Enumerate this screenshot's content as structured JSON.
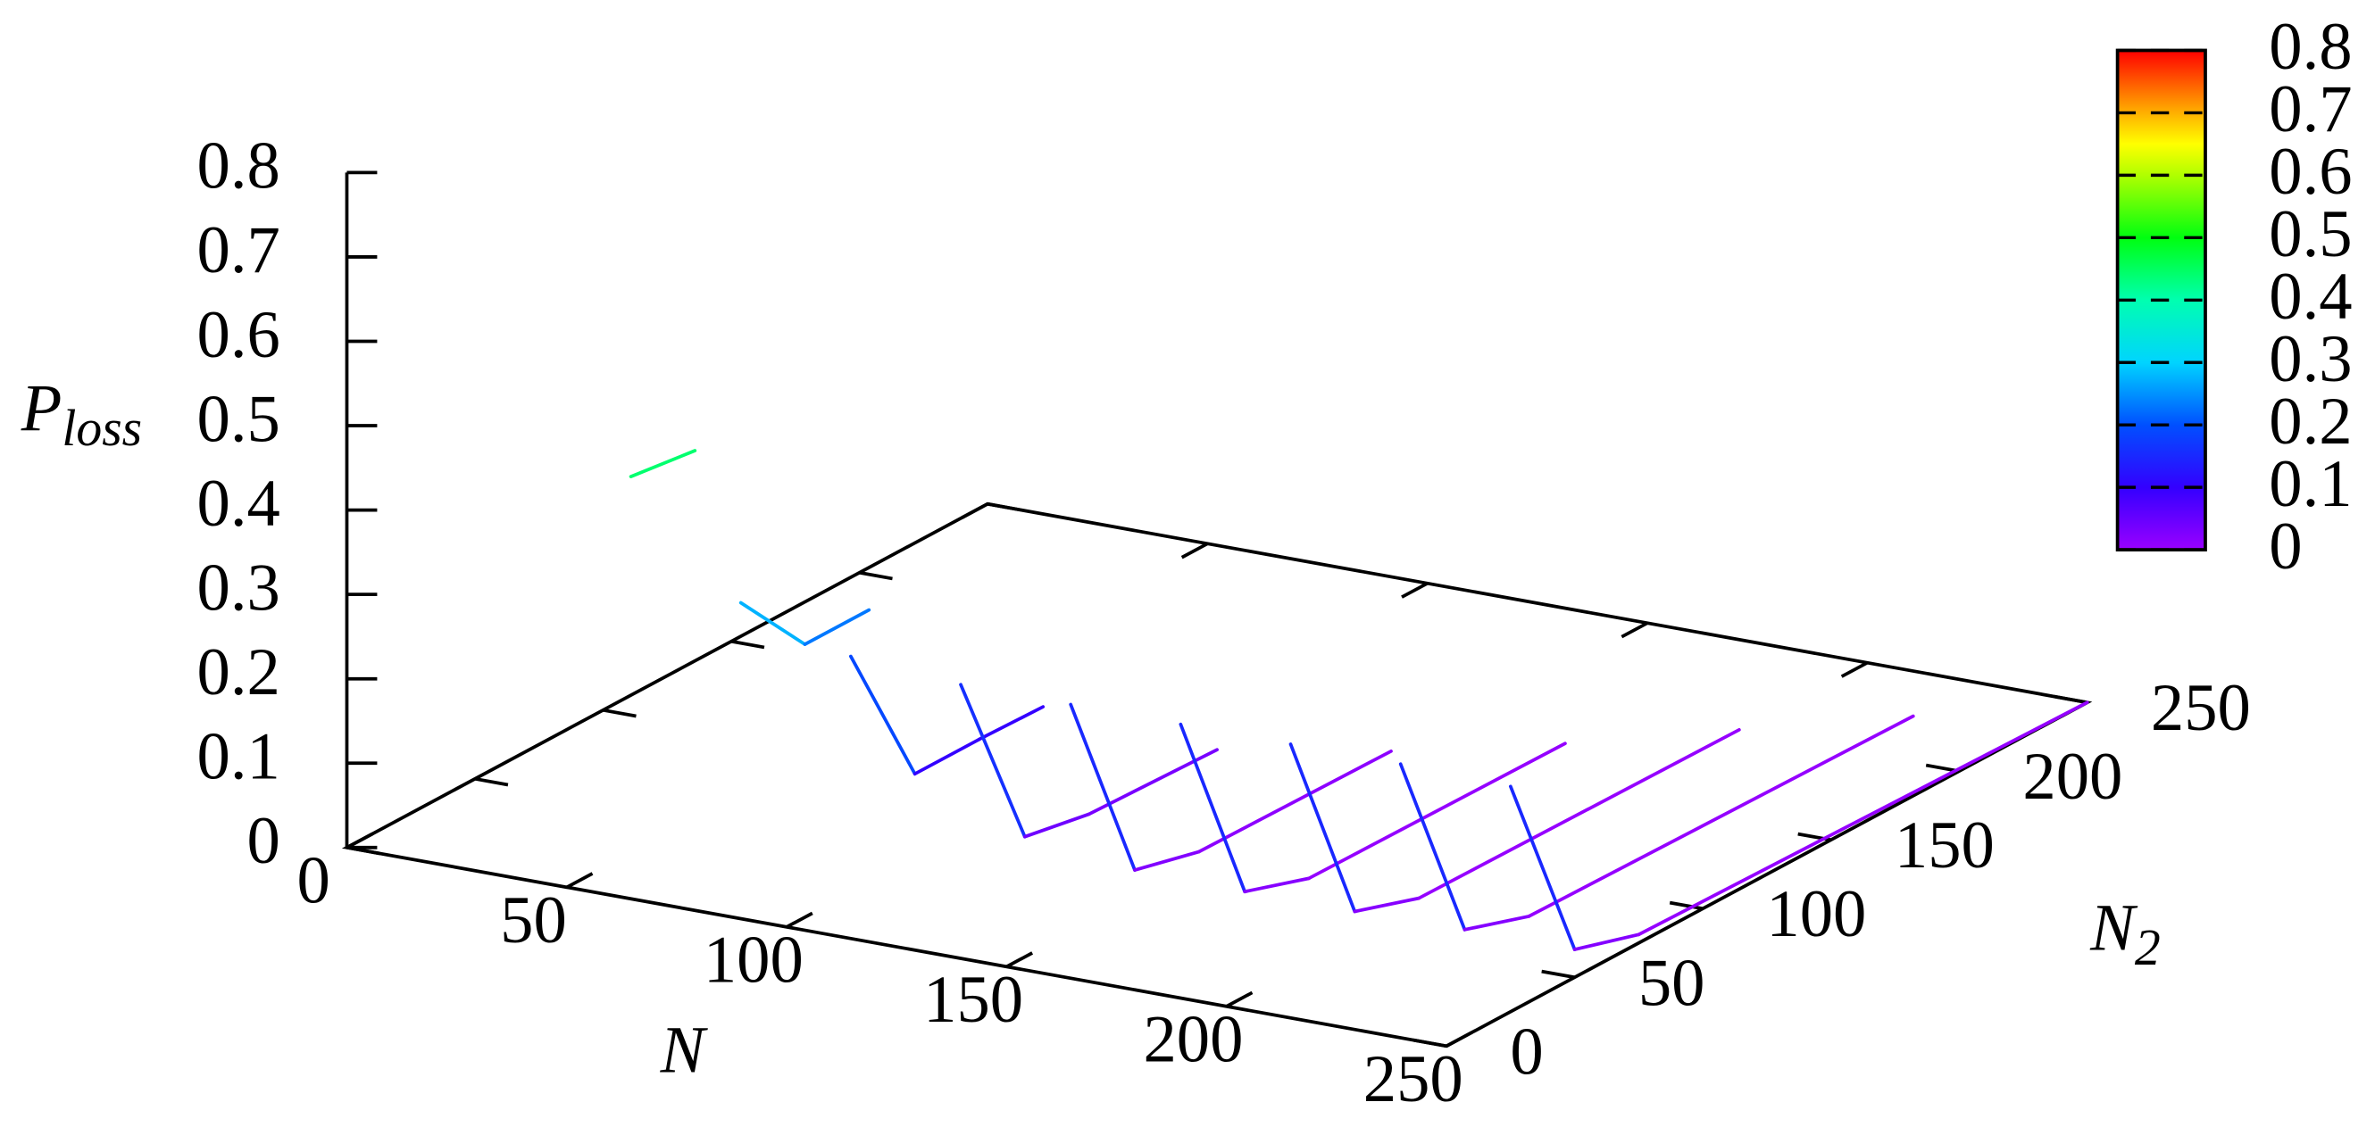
{
  "chart_data": {
    "type": "surface3d",
    "xlabel": "N",
    "ylabel": "N",
    "ylabel_subscript": "2",
    "zlabel": "P",
    "zlabel_subscript": "loss",
    "xlim": [
      0,
      250
    ],
    "ylim": [
      0,
      250
    ],
    "zlim": [
      0,
      0.8
    ],
    "xticks": [
      0,
      50,
      100,
      150,
      200,
      250
    ],
    "yticks": [
      0,
      50,
      100,
      150,
      200,
      250
    ],
    "zticks": [
      0,
      0.1,
      0.2,
      0.3,
      0.4,
      0.5,
      0.6,
      0.7,
      0.8
    ],
    "cblim": [
      0,
      0.8
    ],
    "cbticks": [
      0,
      0.1,
      0.2,
      0.3,
      0.4,
      0.5,
      0.6,
      0.7,
      0.8
    ],
    "palette": [
      {
        "value": 0,
        "color": "#9a00ff"
      },
      {
        "value": 0.1,
        "color": "#3300ff"
      },
      {
        "value": 0.2,
        "color": "#0050ff"
      },
      {
        "value": 0.3,
        "color": "#00d4ff"
      },
      {
        "value": 0.4,
        "color": "#00ffb0"
      },
      {
        "value": 0.5,
        "color": "#00ff10"
      },
      {
        "value": 0.6,
        "color": "#b0ff00"
      },
      {
        "value": 0.65,
        "color": "#ffff00"
      },
      {
        "value": 0.7,
        "color": "#ffb000"
      },
      {
        "value": 0.8,
        "color": "#ff0000"
      }
    ],
    "series": [
      {
        "x": 50,
        "y": [
          25,
          50
        ],
        "z": [
          0.446,
          0.436
        ]
      },
      {
        "x": 75,
        "y": [
          25,
          50,
          75
        ],
        "z": [
          0.32,
          0.23,
          0.23
        ]
      },
      {
        "x": 100,
        "y": [
          25,
          50,
          75,
          100
        ],
        "z": [
          0.28,
          0.1,
          0.1,
          0.098
        ]
      },
      {
        "x": 125,
        "y": [
          25,
          50,
          75,
          125
        ],
        "z": [
          0.27,
          0.049,
          0.035,
          0.03
        ]
      },
      {
        "x": 150,
        "y": [
          25,
          50,
          75,
          150
        ],
        "z": [
          0.27,
          0.033,
          0.014,
          0.011
        ]
      },
      {
        "x": 175,
        "y": [
          25,
          50,
          75,
          175
        ],
        "z": [
          0.27,
          0.031,
          0.006,
          0.003
        ]
      },
      {
        "x": 200,
        "y": [
          25,
          50,
          75,
          200
        ],
        "z": [
          0.27,
          0.031,
          0.006,
          0.002
        ]
      },
      {
        "x": 225,
        "y": [
          25,
          50,
          75,
          225
        ],
        "z": [
          0.27,
          0.033,
          0.008,
          0.001
        ]
      },
      {
        "x": 250,
        "y": [
          25,
          50,
          75,
          250
        ],
        "z": [
          0.267,
          0.033,
          0.01,
          0
        ]
      }
    ]
  }
}
